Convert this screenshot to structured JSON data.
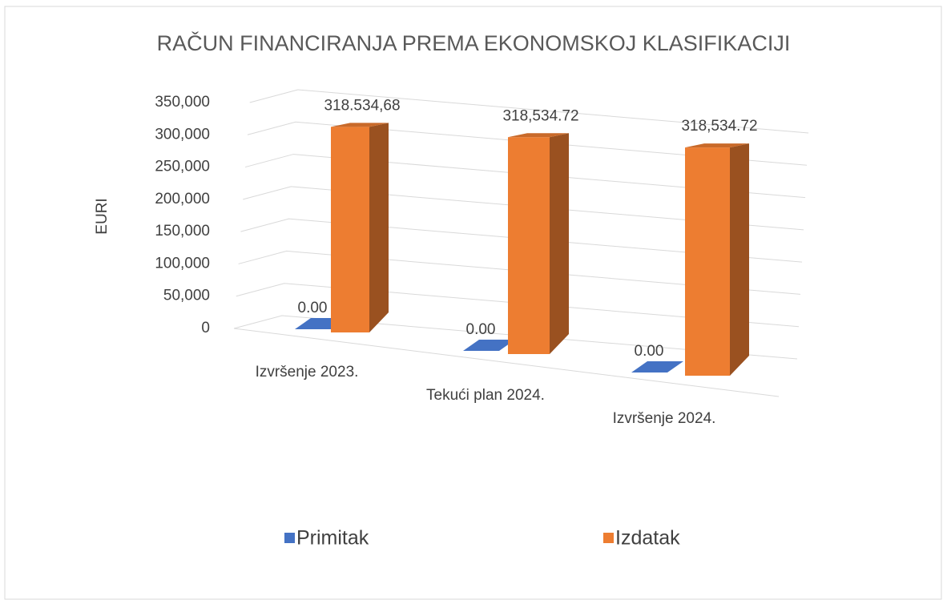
{
  "chart_data": {
    "type": "bar3d",
    "title": "RAČUN FINANCIRANJA PREMA EKONOMSKOJ KLASIFIKACIJI",
    "y_label": "EURI",
    "categories": [
      "Izvršenje  2023.",
      "Tekući plan 2024.",
      "Izvršenje 2024."
    ],
    "series": [
      {
        "name": "Primitak",
        "color": "#4472c4",
        "values": [
          0,
          0,
          0
        ],
        "value_labels": [
          "0.00",
          "0.00",
          "0.00"
        ]
      },
      {
        "name": "Izdatak",
        "color": "#ed7d31",
        "values": [
          318534.68,
          318534.72,
          318534.72
        ],
        "value_labels": [
          "318.534,68",
          "318,534.72",
          "318,534.72"
        ]
      }
    ],
    "ylim": [
      0,
      350000
    ],
    "yticks": [
      0,
      {
        "value": 50000,
        "label": "50,000"
      },
      {
        "value": 100000,
        "label": "100,000"
      },
      {
        "value": 150000,
        "label": "150,000"
      },
      {
        "value": 200000,
        "label": "200,000"
      },
      {
        "value": 250000,
        "label": "250,000"
      },
      {
        "value": 300000,
        "label": "300,000"
      },
      {
        "value": 350000,
        "label": "350,000"
      }
    ],
    "grid": true,
    "legend": "bottom"
  }
}
